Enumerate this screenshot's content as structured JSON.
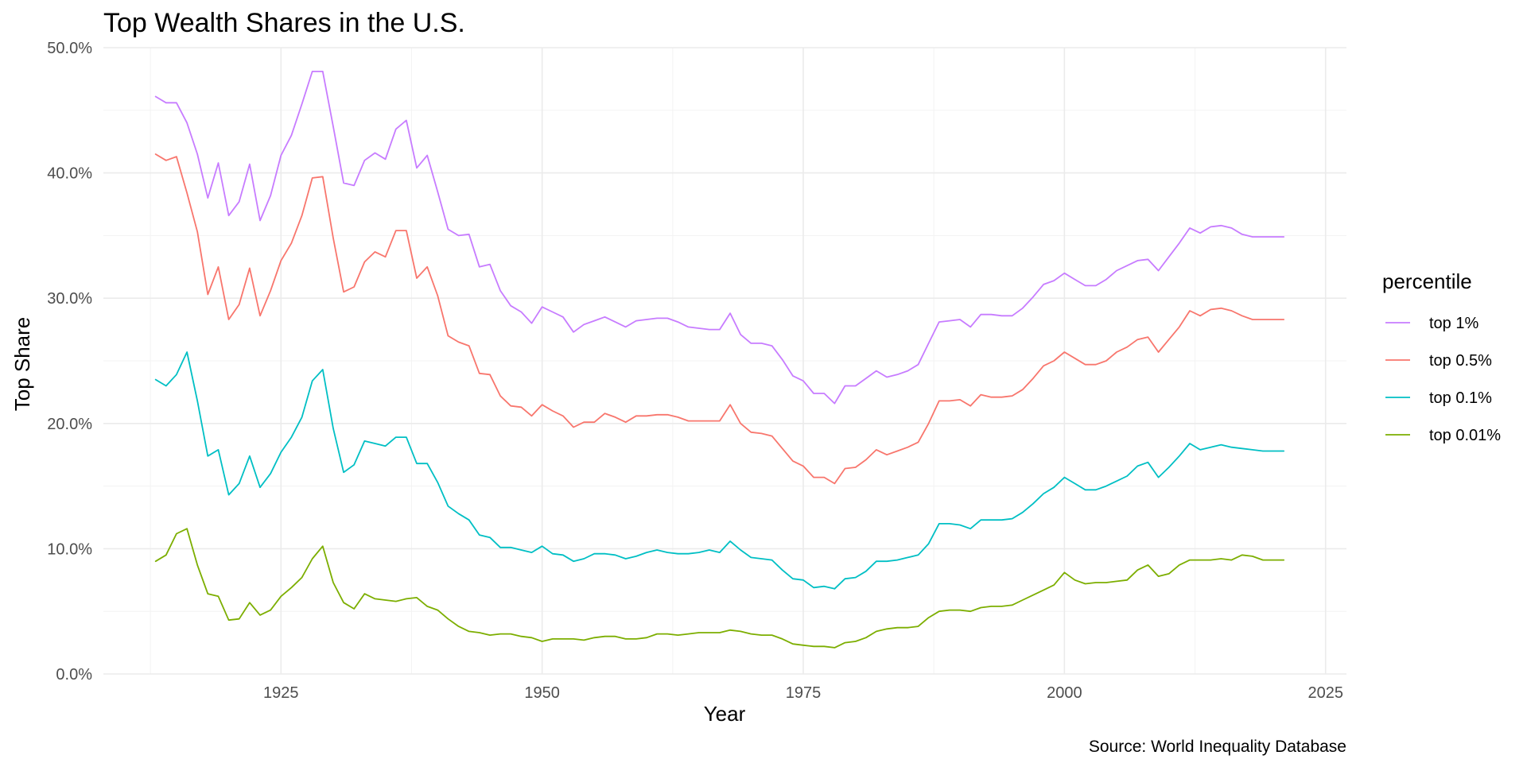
{
  "chart_data": {
    "type": "line",
    "title": "Top Wealth Shares in the U.S.",
    "xlabel": "Year",
    "ylabel": "Top Share",
    "caption": "Source: World Inequality Database",
    "xlim": [
      1908,
      2027
    ],
    "ylim": [
      0,
      0.5
    ],
    "x_ticks": [
      1925,
      1950,
      1975,
      2000,
      2025
    ],
    "x_tick_labels": [
      "1925",
      "1950",
      "1975",
      "2000",
      "2025"
    ],
    "y_ticks": [
      0,
      0.1,
      0.2,
      0.3,
      0.4,
      0.5
    ],
    "y_tick_labels": [
      "0.0%",
      "10.0%",
      "20.0%",
      "30.0%",
      "40.0%",
      "50.0%"
    ],
    "grid": true,
    "legend_title": "percentile",
    "legend_position": "right",
    "x": [
      1913,
      1914,
      1915,
      1916,
      1917,
      1918,
      1919,
      1920,
      1921,
      1922,
      1923,
      1924,
      1925,
      1926,
      1927,
      1928,
      1929,
      1930,
      1931,
      1932,
      1933,
      1934,
      1935,
      1936,
      1937,
      1938,
      1939,
      1940,
      1941,
      1942,
      1943,
      1944,
      1945,
      1946,
      1947,
      1948,
      1949,
      1950,
      1951,
      1952,
      1953,
      1954,
      1955,
      1956,
      1957,
      1958,
      1959,
      1960,
      1961,
      1962,
      1963,
      1964,
      1965,
      1966,
      1967,
      1968,
      1969,
      1970,
      1971,
      1972,
      1973,
      1974,
      1975,
      1976,
      1977,
      1978,
      1979,
      1980,
      1981,
      1982,
      1983,
      1984,
      1985,
      1986,
      1987,
      1988,
      1989,
      1990,
      1991,
      1992,
      1993,
      1994,
      1995,
      1996,
      1997,
      1998,
      1999,
      2000,
      2001,
      2002,
      2003,
      2004,
      2005,
      2006,
      2007,
      2008,
      2009,
      2010,
      2011,
      2012,
      2013,
      2014,
      2015,
      2016,
      2017,
      2018,
      2019,
      2020,
      2021
    ],
    "series": [
      {
        "name": "top 1%",
        "color": "#C77CFF",
        "values": [
          0.461,
          0.456,
          0.456,
          0.44,
          0.415,
          0.38,
          0.408,
          0.366,
          0.377,
          0.407,
          0.362,
          0.382,
          0.414,
          0.43,
          0.455,
          0.481,
          0.481,
          0.437,
          0.392,
          0.39,
          0.41,
          0.416,
          0.411,
          0.435,
          0.442,
          0.404,
          0.414,
          0.385,
          0.355,
          0.35,
          0.351,
          0.325,
          0.327,
          0.306,
          0.294,
          0.289,
          0.28,
          0.293,
          0.289,
          0.285,
          0.273,
          0.279,
          0.282,
          0.285,
          0.281,
          0.277,
          0.282,
          0.283,
          0.284,
          0.284,
          0.281,
          0.277,
          0.276,
          0.275,
          0.275,
          0.288,
          0.271,
          0.264,
          0.264,
          0.262,
          0.251,
          0.238,
          0.234,
          0.224,
          0.224,
          0.216,
          0.23,
          0.23,
          0.236,
          0.242,
          0.237,
          0.239,
          0.242,
          0.247,
          0.264,
          0.281,
          0.282,
          0.283,
          0.277,
          0.287,
          0.287,
          0.286,
          0.286,
          0.292,
          0.301,
          0.311,
          0.314,
          0.32,
          0.315,
          0.31,
          0.31,
          0.315,
          0.322,
          0.326,
          0.33,
          0.331,
          0.322,
          0.333,
          0.344,
          0.356,
          0.352,
          0.357,
          0.358,
          0.356,
          0.351,
          0.349,
          0.349,
          0.349,
          0.349
        ]
      },
      {
        "name": "top 0.5%",
        "color": "#F8766D",
        "values": [
          0.415,
          0.41,
          0.413,
          0.384,
          0.353,
          0.303,
          0.325,
          0.283,
          0.295,
          0.324,
          0.286,
          0.306,
          0.33,
          0.344,
          0.366,
          0.396,
          0.397,
          0.348,
          0.305,
          0.309,
          0.329,
          0.337,
          0.333,
          0.354,
          0.354,
          0.316,
          0.325,
          0.302,
          0.27,
          0.265,
          0.262,
          0.24,
          0.239,
          0.222,
          0.214,
          0.213,
          0.206,
          0.215,
          0.21,
          0.206,
          0.197,
          0.201,
          0.201,
          0.208,
          0.205,
          0.201,
          0.206,
          0.206,
          0.207,
          0.207,
          0.205,
          0.202,
          0.202,
          0.202,
          0.202,
          0.215,
          0.2,
          0.193,
          0.192,
          0.19,
          0.18,
          0.17,
          0.166,
          0.157,
          0.157,
          0.152,
          0.164,
          0.165,
          0.171,
          0.179,
          0.175,
          0.178,
          0.181,
          0.185,
          0.2,
          0.218,
          0.218,
          0.219,
          0.214,
          0.223,
          0.221,
          0.221,
          0.222,
          0.227,
          0.236,
          0.246,
          0.25,
          0.257,
          0.252,
          0.247,
          0.247,
          0.25,
          0.257,
          0.261,
          0.267,
          0.269,
          0.257,
          0.267,
          0.277,
          0.29,
          0.286,
          0.291,
          0.292,
          0.29,
          0.286,
          0.283,
          0.283,
          0.283,
          0.283
        ]
      },
      {
        "name": "top 0.1%",
        "color": "#00BFC4",
        "values": [
          0.235,
          0.23,
          0.239,
          0.257,
          0.218,
          0.174,
          0.179,
          0.143,
          0.152,
          0.174,
          0.149,
          0.16,
          0.177,
          0.189,
          0.205,
          0.234,
          0.243,
          0.196,
          0.161,
          0.167,
          0.186,
          0.184,
          0.182,
          0.189,
          0.189,
          0.168,
          0.168,
          0.153,
          0.134,
          0.128,
          0.123,
          0.111,
          0.109,
          0.101,
          0.101,
          0.099,
          0.097,
          0.102,
          0.096,
          0.095,
          0.09,
          0.092,
          0.096,
          0.096,
          0.095,
          0.092,
          0.094,
          0.097,
          0.099,
          0.097,
          0.096,
          0.096,
          0.097,
          0.099,
          0.097,
          0.106,
          0.099,
          0.093,
          0.092,
          0.091,
          0.083,
          0.076,
          0.075,
          0.069,
          0.07,
          0.068,
          0.076,
          0.077,
          0.082,
          0.09,
          0.09,
          0.091,
          0.093,
          0.095,
          0.104,
          0.12,
          0.12,
          0.119,
          0.116,
          0.123,
          0.123,
          0.123,
          0.124,
          0.129,
          0.136,
          0.144,
          0.149,
          0.157,
          0.152,
          0.147,
          0.147,
          0.15,
          0.154,
          0.158,
          0.166,
          0.169,
          0.157,
          0.165,
          0.174,
          0.184,
          0.179,
          0.181,
          0.183,
          0.181,
          0.18,
          0.179,
          0.178,
          0.178,
          0.178
        ]
      },
      {
        "name": "top 0.01%",
        "color": "#7CAE00",
        "values": [
          0.09,
          0.095,
          0.112,
          0.116,
          0.087,
          0.064,
          0.062,
          0.043,
          0.044,
          0.057,
          0.047,
          0.051,
          0.062,
          0.069,
          0.077,
          0.092,
          0.102,
          0.073,
          0.057,
          0.052,
          0.064,
          0.06,
          0.059,
          0.058,
          0.06,
          0.061,
          0.054,
          0.051,
          0.044,
          0.038,
          0.034,
          0.033,
          0.031,
          0.032,
          0.032,
          0.03,
          0.029,
          0.026,
          0.028,
          0.028,
          0.028,
          0.027,
          0.029,
          0.03,
          0.03,
          0.028,
          0.028,
          0.029,
          0.032,
          0.032,
          0.031,
          0.032,
          0.033,
          0.033,
          0.033,
          0.035,
          0.034,
          0.032,
          0.031,
          0.031,
          0.028,
          0.024,
          0.023,
          0.022,
          0.022,
          0.021,
          0.025,
          0.026,
          0.029,
          0.034,
          0.036,
          0.037,
          0.037,
          0.038,
          0.045,
          0.05,
          0.051,
          0.051,
          0.05,
          0.053,
          0.054,
          0.054,
          0.055,
          0.059,
          0.063,
          0.067,
          0.071,
          0.081,
          0.075,
          0.072,
          0.073,
          0.073,
          0.074,
          0.075,
          0.083,
          0.087,
          0.078,
          0.08,
          0.087,
          0.091,
          0.091,
          0.091,
          0.092,
          0.091,
          0.095,
          0.094,
          0.091,
          0.091,
          0.091
        ]
      }
    ],
    "legend_order": [
      0,
      1,
      2,
      3
    ]
  }
}
